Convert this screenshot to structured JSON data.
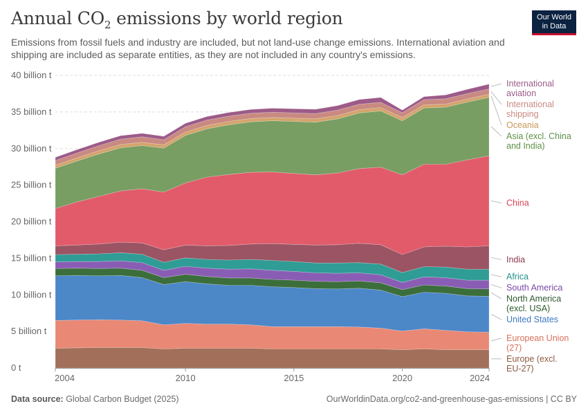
{
  "header": {
    "title_main": "Annual CO",
    "title_sub": "2",
    "title_rest": " emissions by world region",
    "subtitle": "Emissions from fossil fuels and industry are included, but not land-use change emissions. International aviation and shipping are included as separate entities, as they are not included in any country's emissions."
  },
  "logo": {
    "line1": "Our World",
    "line2": "in Data",
    "bg": "#0b2240",
    "accent": "#c8102e"
  },
  "footer": {
    "source_label": "Data source:",
    "source_value": " Global Carbon Budget (2025)",
    "url": "OurWorldinData.org/co2-and-greenhouse-gas-emissions | CC BY"
  },
  "chart_data": {
    "type": "area",
    "stacked": true,
    "x": [
      2004,
      2005,
      2006,
      2007,
      2008,
      2009,
      2010,
      2011,
      2012,
      2013,
      2014,
      2015,
      2016,
      2017,
      2018,
      2019,
      2020,
      2021,
      2022,
      2023,
      2024
    ],
    "x_ticks": [
      2004,
      2010,
      2015,
      2020,
      2024
    ],
    "y_ticks": [
      0,
      5,
      10,
      15,
      20,
      25,
      30,
      35,
      40
    ],
    "y_tick_labels": [
      "0 t",
      "5 billion t",
      "10 billion t",
      "15 billion t",
      "20 billion t",
      "25 billion t",
      "30 billion t",
      "35 billion t",
      "40 billion t"
    ],
    "ylim": [
      0,
      40
    ],
    "y_unit": "billion t",
    "grid": true,
    "series": [
      {
        "name": "Europe (excl. EU-27)",
        "color": "#a2705a",
        "values": [
          2.7,
          2.75,
          2.8,
          2.8,
          2.8,
          2.6,
          2.7,
          2.7,
          2.7,
          2.7,
          2.6,
          2.6,
          2.6,
          2.6,
          2.6,
          2.6,
          2.5,
          2.6,
          2.5,
          2.5,
          2.5
        ]
      },
      {
        "name": "European Union (27)",
        "color": "#e98874",
        "values": [
          3.8,
          3.8,
          3.8,
          3.75,
          3.65,
          3.3,
          3.4,
          3.3,
          3.3,
          3.2,
          3.05,
          3.05,
          3.05,
          3.05,
          3.0,
          2.85,
          2.55,
          2.75,
          2.65,
          2.45,
          2.4
        ]
      },
      {
        "name": "United States",
        "color": "#4c87c8",
        "values": [
          6.1,
          6.1,
          6.0,
          6.1,
          5.9,
          5.5,
          5.7,
          5.5,
          5.3,
          5.4,
          5.45,
          5.35,
          5.2,
          5.15,
          5.3,
          5.2,
          4.7,
          5.0,
          5.05,
          4.9,
          4.9
        ]
      },
      {
        "name": "North America (excl. USA)",
        "color": "#3c6e3c",
        "values": [
          1.0,
          1.0,
          1.0,
          1.0,
          1.0,
          0.95,
          1.0,
          1.0,
          1.0,
          1.0,
          1.0,
          1.0,
          1.0,
          1.0,
          1.0,
          1.0,
          0.95,
          1.0,
          1.0,
          1.0,
          1.0
        ]
      },
      {
        "name": "South America",
        "color": "#8a5db5",
        "values": [
          0.9,
          0.9,
          0.95,
          1.0,
          1.05,
          1.0,
          1.1,
          1.15,
          1.2,
          1.25,
          1.25,
          1.2,
          1.15,
          1.15,
          1.1,
          1.1,
          1.0,
          1.1,
          1.15,
          1.15,
          1.2
        ]
      },
      {
        "name": "Africa",
        "color": "#2f9c95",
        "values": [
          1.0,
          1.0,
          1.05,
          1.1,
          1.15,
          1.1,
          1.15,
          1.2,
          1.25,
          1.3,
          1.35,
          1.35,
          1.35,
          1.4,
          1.4,
          1.45,
          1.35,
          1.4,
          1.45,
          1.5,
          1.5
        ]
      },
      {
        "name": "India",
        "color": "#9b5463",
        "values": [
          1.2,
          1.25,
          1.35,
          1.45,
          1.55,
          1.7,
          1.75,
          1.85,
          2.0,
          2.1,
          2.3,
          2.35,
          2.45,
          2.5,
          2.65,
          2.65,
          2.45,
          2.7,
          2.85,
          3.05,
          3.2
        ]
      },
      {
        "name": "China",
        "color": "#e25b6b",
        "values": [
          5.1,
          5.9,
          6.5,
          7.0,
          7.4,
          7.9,
          8.5,
          9.4,
          9.7,
          9.8,
          9.8,
          9.7,
          9.6,
          9.8,
          10.2,
          10.6,
          10.9,
          11.3,
          11.2,
          11.9,
          12.3
        ]
      },
      {
        "name": "Asia (excl. China and India)",
        "color": "#789e63",
        "values": [
          5.5,
          5.6,
          5.8,
          5.9,
          5.9,
          6.0,
          6.5,
          6.6,
          6.8,
          6.9,
          7.0,
          7.1,
          7.2,
          7.4,
          7.6,
          7.7,
          7.4,
          7.7,
          7.8,
          7.9,
          8.0
        ]
      },
      {
        "name": "Oceania",
        "color": "#d4a46c",
        "values": [
          0.42,
          0.43,
          0.44,
          0.45,
          0.46,
          0.46,
          0.46,
          0.46,
          0.46,
          0.45,
          0.45,
          0.45,
          0.46,
          0.46,
          0.46,
          0.45,
          0.43,
          0.43,
          0.43,
          0.43,
          0.43
        ]
      },
      {
        "name": "International shipping",
        "color": "#c98a82",
        "values": [
          0.65,
          0.67,
          0.7,
          0.73,
          0.75,
          0.7,
          0.72,
          0.73,
          0.72,
          0.72,
          0.72,
          0.72,
          0.72,
          0.73,
          0.74,
          0.72,
          0.66,
          0.7,
          0.72,
          0.72,
          0.73
        ]
      },
      {
        "name": "International aviation",
        "color": "#9c5b89",
        "values": [
          0.42,
          0.44,
          0.46,
          0.47,
          0.47,
          0.46,
          0.48,
          0.49,
          0.5,
          0.52,
          0.54,
          0.56,
          0.59,
          0.62,
          0.64,
          0.66,
          0.35,
          0.42,
          0.52,
          0.6,
          0.65
        ]
      }
    ],
    "legend": {
      "placement": "right",
      "entries": [
        {
          "lines": [
            "International",
            "aviation"
          ],
          "color": "#9c5b89"
        },
        {
          "lines": [
            "International",
            "shipping"
          ],
          "color": "#c98a82"
        },
        {
          "lines": [
            "Oceania"
          ],
          "color": "#c79858"
        },
        {
          "lines": [
            "Asia (excl. China",
            "and India)"
          ],
          "color": "#5e8f47"
        },
        {
          "lines": [
            "China"
          ],
          "color": "#d64556"
        },
        {
          "lines": [
            "India"
          ],
          "color": "#8b3a4c"
        },
        {
          "lines": [
            "Africa"
          ],
          "color": "#22918a"
        },
        {
          "lines": [
            "South America"
          ],
          "color": "#7a48a8"
        },
        {
          "lines": [
            "North America",
            "(excl. USA)"
          ],
          "color": "#2e5a2e"
        },
        {
          "lines": [
            "United States"
          ],
          "color": "#3f79c0"
        },
        {
          "lines": [
            "European Union",
            "(27)"
          ],
          "color": "#d8705c"
        },
        {
          "lines": [
            "Europe (excl.",
            "EU-27)"
          ],
          "color": "#8e5a42"
        }
      ]
    }
  }
}
